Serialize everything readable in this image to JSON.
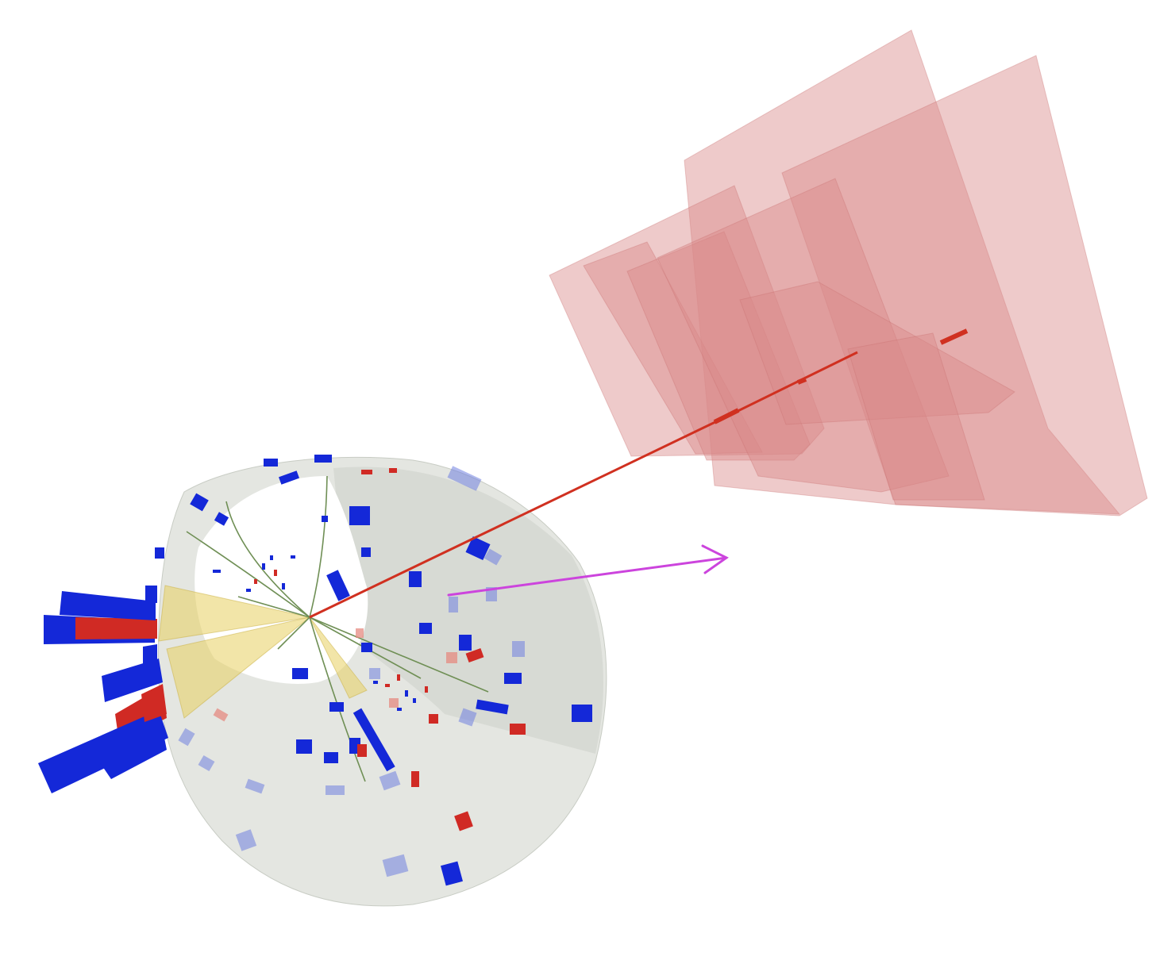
{
  "image": {
    "background": "#ffffff",
    "colors": {
      "muon_chamber": "#d98a8a",
      "muon_track": "#d03020",
      "calorimeter_shell": "#dfe2dc",
      "hcal_tower": "#1428d8",
      "ecal_tower": "#d02a24",
      "jet_cone": "#e8d060",
      "tracks": "#6f8f55",
      "met_arrow": "#cc44dd"
    },
    "icons": [
      "event-display",
      "muon-chambers",
      "missing-energy-arrow"
    ]
  }
}
